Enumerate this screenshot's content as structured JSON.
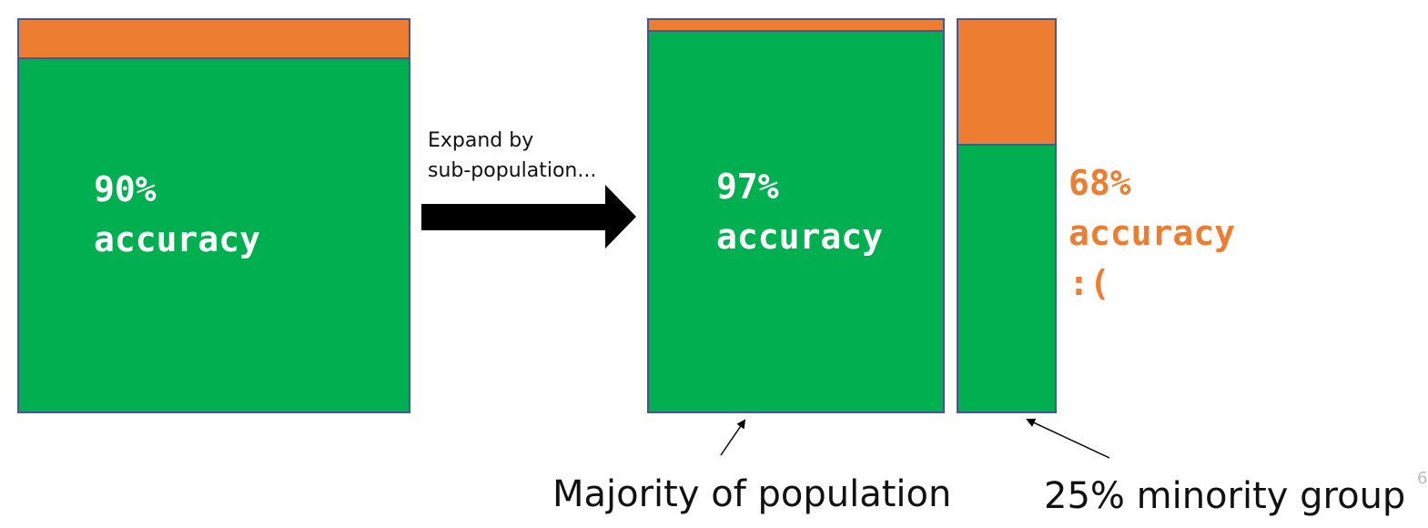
{
  "colors": {
    "correct": "#00b050",
    "error": "#ed7d31",
    "border": "#3f5a96",
    "label_on_green": "#ffffff",
    "label_minority": "#ed7d31",
    "arrow": "#000000"
  },
  "overall": {
    "accuracy_fraction": 0.9,
    "label_line1": "90%",
    "label_line2": "accuracy"
  },
  "expand": {
    "line1": "Expand by",
    "line2": "sub-population..."
  },
  "majority": {
    "accuracy_fraction": 0.97,
    "label_line1": "97%",
    "label_line2": "accuracy",
    "caption": "Majority of population"
  },
  "minority": {
    "accuracy_fraction": 0.68,
    "label_line1": "68%",
    "label_line2": "accuracy",
    "label_line3": ":(",
    "caption": "25% minority group"
  },
  "page_number": "6"
}
